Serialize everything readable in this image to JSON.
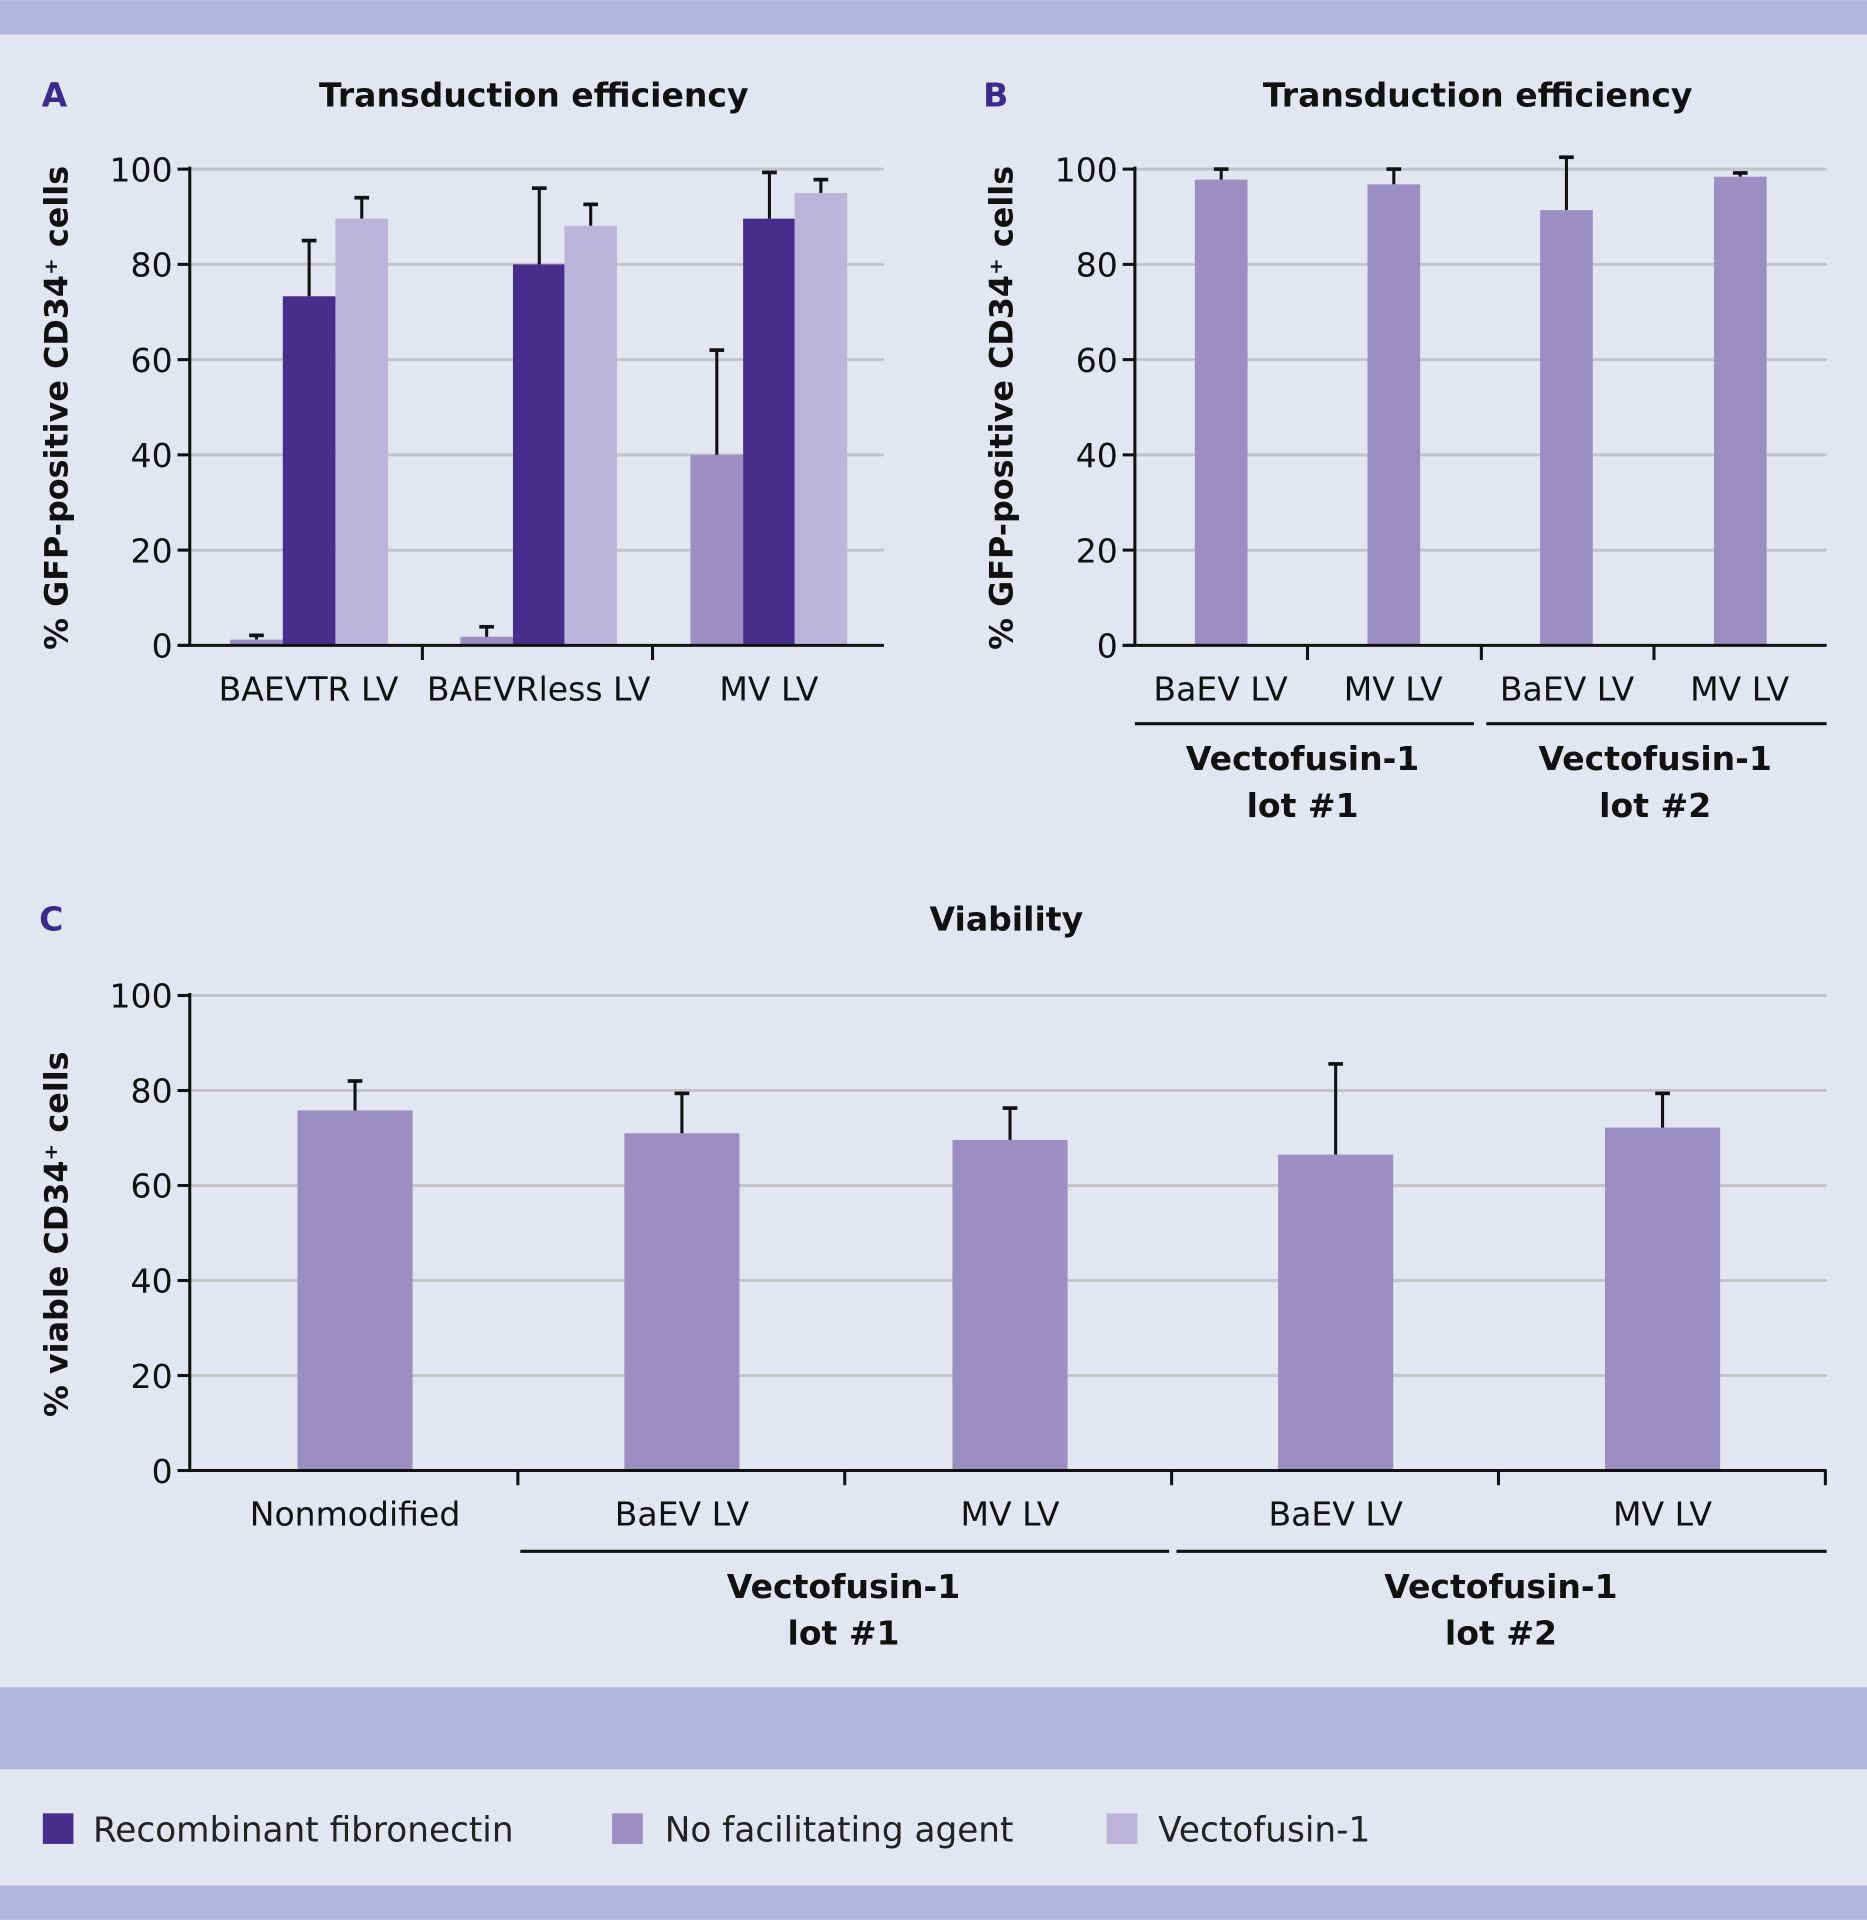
{
  "colors": {
    "background": "#e3e5f0",
    "band": "#b1b6dc",
    "letter": "#3a2a8a",
    "grid": "#c4c4c8"
  },
  "legend": [
    {
      "label": "Recombinant fibronectin",
      "color": "#472d8c"
    },
    {
      "label": "No facilitating agent",
      "color": "#9a8ec2"
    },
    {
      "label": "Vectofusin-1",
      "color": "#bdb5d9"
    }
  ],
  "chart_data": [
    {
      "panel": "A",
      "type": "bar",
      "title": "Transduction efficiency",
      "ylabel": "% GFP-positive CD34⁺ cells",
      "ylim": [
        0,
        100
      ],
      "yticks": [
        "0",
        "20",
        "40",
        "60",
        "80",
        "100"
      ],
      "grid": true,
      "categories": [
        "BAEVTR LV",
        "BAEVRless LV",
        "MV LV"
      ],
      "series": [
        {
          "name": "No facilitating agent",
          "color": "#9a8ec2",
          "values": [
            1.2,
            1.8,
            40
          ],
          "error_upper": [
            2.1,
            3.9,
            62
          ]
        },
        {
          "name": "Recombinant fibronectin",
          "color": "#472d8c",
          "values": [
            73.3,
            80,
            89.6
          ],
          "error_upper": [
            85,
            96,
            99.3
          ]
        },
        {
          "name": "Vectofusin-1",
          "color": "#bdb5d9",
          "values": [
            89.6,
            88.1,
            95
          ],
          "error_upper": [
            94,
            92.6,
            97.8
          ]
        }
      ]
    },
    {
      "panel": "B",
      "type": "bar",
      "title": "Transduction efficiency",
      "ylabel": "% GFP-positive CD34⁺ cells",
      "ylim": [
        0,
        100
      ],
      "yticks": [
        "0",
        "20",
        "40",
        "60",
        "80",
        "100"
      ],
      "grid": true,
      "categories": [
        "BaEV LV",
        "MV LV",
        "BaEV LV",
        "MV LV"
      ],
      "groups": [
        {
          "line1": "Vectofusin-1",
          "line2": "lot #1"
        },
        {
          "line1": "Vectofusin-1",
          "line2": "lot #2"
        }
      ],
      "series": [
        {
          "name": "No facilitating agent",
          "color": "#9a8ec2",
          "values": [
            97.8,
            96.8,
            91.4,
            98.4
          ],
          "error_upper": [
            100,
            100,
            102.5,
            99.2
          ]
        }
      ]
    },
    {
      "panel": "C",
      "type": "bar",
      "title": "Viability",
      "ylabel": "% viable CD34⁺ cells",
      "ylim": [
        0,
        100
      ],
      "yticks": [
        "0",
        "20",
        "40",
        "60",
        "80",
        "100"
      ],
      "grid": true,
      "categories": [
        "Nonmodified",
        "BaEV LV",
        "MV LV",
        "BaEV LV",
        "MV LV"
      ],
      "groups": [
        {
          "line1": "Vectofusin-1",
          "line2": "lot #1"
        },
        {
          "line1": "Vectofusin-1",
          "line2": "lot #2"
        }
      ],
      "series": [
        {
          "name": "No facilitating agent",
          "color": "#9a8ec2",
          "values": [
            75.8,
            71,
            69.6,
            66.5,
            72.2
          ],
          "error_upper": [
            82,
            79.4,
            76.3,
            85.6,
            79.4
          ]
        }
      ]
    }
  ]
}
